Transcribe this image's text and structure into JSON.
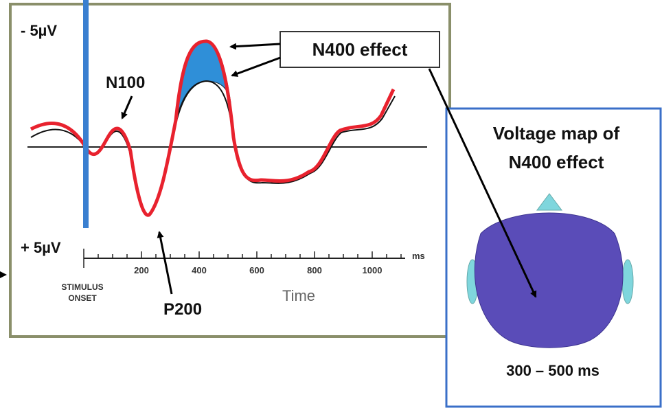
{
  "figure": {
    "axis": {
      "top_label": "- 5µV",
      "bottom_label": "+ 5µV",
      "unit": "ms",
      "title": "Time",
      "ticks": [
        "200",
        "400",
        "600",
        "800",
        "1000"
      ],
      "onset_label": "STIMULUS ONSET"
    },
    "annotations": {
      "n100": "N100",
      "p200": "P200",
      "n400": "N400 effect"
    },
    "map": {
      "title_line1": "Voltage map of",
      "title_line2": "N400 effect",
      "window": "300 – 500 ms"
    }
  }
}
